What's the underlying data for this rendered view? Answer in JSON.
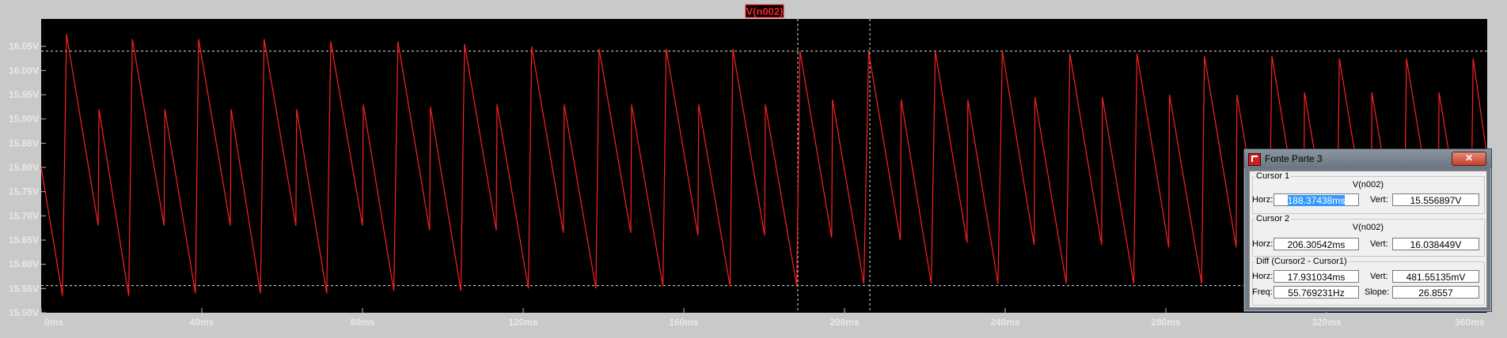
{
  "chart_data": {
    "type": "line",
    "title": "V(n002)",
    "xlabel": "",
    "ylabel": "",
    "xlim": [
      0,
      360
    ],
    "ylim": [
      15.5,
      16.1
    ],
    "x_unit": "ms",
    "y_unit": "V",
    "x_ticks": [
      "0ms",
      "40ms",
      "80ms",
      "120ms",
      "160ms",
      "200ms",
      "240ms",
      "280ms",
      "320ms",
      "360ms"
    ],
    "y_ticks": [
      "15.50V",
      "15.55V",
      "15.60V",
      "15.65V",
      "15.70V",
      "15.75V",
      "15.80V",
      "15.85V",
      "15.90V",
      "15.95V",
      "16.00V",
      "16.05V"
    ],
    "background": "#000000",
    "trace_color": "#ff2020",
    "grid": false,
    "series": [
      {
        "name": "V(n002)",
        "x": [
          0,
          5.3,
          6.3,
          14.2,
          14.4,
          21.8,
          22.7,
          30.6,
          30.8,
          38.4,
          39.2,
          47.1,
          47.3,
          54.6,
          55.5,
          63.4,
          63.6,
          71.1,
          72.1,
          80.0,
          80.2,
          87.8,
          88.8,
          96.7,
          96.9,
          104.5,
          105.4,
          113.3,
          113.5,
          121.3,
          122.1,
          130.0,
          130.2,
          138.1,
          138.9,
          146.8,
          147.0,
          154.8,
          155.6,
          163.5,
          163.7,
          171.5,
          172.2,
          180.1,
          180.3,
          188.1,
          188.9,
          196.8,
          197.0,
          204.8,
          206.0,
          213.9,
          214.1,
          221.6,
          222.6,
          230.5,
          230.7,
          238.2,
          239.3,
          247.2,
          247.4,
          255.2,
          256.1,
          264.0,
          264.2,
          272.0,
          272.8,
          280.7,
          280.9,
          288.9,
          289.6,
          297.5,
          297.7,
          305.6,
          306.4,
          314.3,
          314.5,
          322.5,
          323.2,
          331.1,
          331.3,
          339.2,
          339.9,
          347.8,
          348.0,
          355.8,
          356.5,
          360
        ],
        "y": [
          15.8,
          15.535,
          16.075,
          15.68,
          15.92,
          15.535,
          16.065,
          15.68,
          15.92,
          15.54,
          16.065,
          15.68,
          15.92,
          15.54,
          16.065,
          15.68,
          15.92,
          15.54,
          16.06,
          15.68,
          15.93,
          15.545,
          16.06,
          15.67,
          15.925,
          15.545,
          16.055,
          15.67,
          15.93,
          15.55,
          16.05,
          15.665,
          15.93,
          15.55,
          16.045,
          15.665,
          15.93,
          15.555,
          16.045,
          15.66,
          15.93,
          15.555,
          16.045,
          15.66,
          15.93,
          15.556,
          16.04,
          15.655,
          15.94,
          15.56,
          16.038,
          15.65,
          15.94,
          15.56,
          16.04,
          15.645,
          15.94,
          15.56,
          16.04,
          15.64,
          15.945,
          15.56,
          16.035,
          15.64,
          15.945,
          15.56,
          16.035,
          15.635,
          15.95,
          15.56,
          16.03,
          15.635,
          15.95,
          15.56,
          16.03,
          15.63,
          15.955,
          15.56,
          16.025,
          15.625,
          15.955,
          15.56,
          16.025,
          15.625,
          15.955,
          15.56,
          16.025,
          15.82
        ]
      }
    ],
    "reference_lines": {
      "horizontal": [
        16.04,
        15.556
      ],
      "vertical": [
        188.37,
        206.31
      ]
    }
  },
  "cursor_dialog": {
    "title": "Fonte Parte 3",
    "close_label": "✕",
    "cursor1": {
      "label": "Cursor 1",
      "trace": "V(n002)",
      "horz_label": "Horz:",
      "horz_value": "188.37438ms",
      "vert_label": "Vert:",
      "vert_value": "15.556897V"
    },
    "cursor2": {
      "label": "Cursor 2",
      "trace": "V(n002)",
      "horz_label": "Horz:",
      "horz_value": "206.30542ms",
      "vert_label": "Vert:",
      "vert_value": "16.038449V"
    },
    "diff": {
      "label": "Diff (Cursor2 - Cursor1)",
      "horz_label": "Horz:",
      "horz_value": "17.931034ms",
      "vert_label": "Vert:",
      "vert_value": "481.55135mV",
      "freq_label": "Freq:",
      "freq_value": "55.769231Hz",
      "slope_label": "Slope:",
      "slope_value": "26.8557"
    }
  }
}
